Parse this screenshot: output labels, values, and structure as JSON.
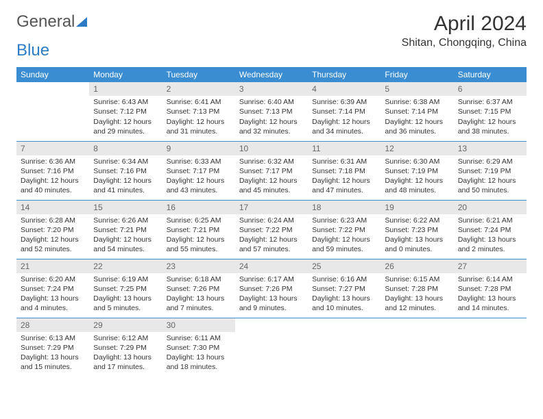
{
  "logo": {
    "text1": "General",
    "text2": "Blue"
  },
  "title": "April 2024",
  "location": "Shitan, Chongqing, China",
  "colors": {
    "header_bg": "#3a8dd0",
    "header_text": "#ffffff",
    "daynum_bg": "#e8e8e8",
    "daynum_text": "#666666",
    "cell_border": "#3a8dd0",
    "body_text": "#333333",
    "logo_gray": "#555555",
    "logo_blue": "#2b7cc4",
    "background": "#ffffff"
  },
  "typography": {
    "month_title_fontsize": 30,
    "location_fontsize": 16,
    "header_fontsize": 12,
    "daynum_fontsize": 12,
    "cell_fontsize": 10.5,
    "font_family": "Arial"
  },
  "layout": {
    "columns": 7,
    "rows": 5,
    "start_day_index": 1,
    "total_days": 30
  },
  "weekdays": [
    "Sunday",
    "Monday",
    "Tuesday",
    "Wednesday",
    "Thursday",
    "Friday",
    "Saturday"
  ],
  "days": [
    {
      "n": 1,
      "sunrise": "6:43 AM",
      "sunset": "7:12 PM",
      "daylight": "12 hours and 29 minutes."
    },
    {
      "n": 2,
      "sunrise": "6:41 AM",
      "sunset": "7:13 PM",
      "daylight": "12 hours and 31 minutes."
    },
    {
      "n": 3,
      "sunrise": "6:40 AM",
      "sunset": "7:13 PM",
      "daylight": "12 hours and 32 minutes."
    },
    {
      "n": 4,
      "sunrise": "6:39 AM",
      "sunset": "7:14 PM",
      "daylight": "12 hours and 34 minutes."
    },
    {
      "n": 5,
      "sunrise": "6:38 AM",
      "sunset": "7:14 PM",
      "daylight": "12 hours and 36 minutes."
    },
    {
      "n": 6,
      "sunrise": "6:37 AM",
      "sunset": "7:15 PM",
      "daylight": "12 hours and 38 minutes."
    },
    {
      "n": 7,
      "sunrise": "6:36 AM",
      "sunset": "7:16 PM",
      "daylight": "12 hours and 40 minutes."
    },
    {
      "n": 8,
      "sunrise": "6:34 AM",
      "sunset": "7:16 PM",
      "daylight": "12 hours and 41 minutes."
    },
    {
      "n": 9,
      "sunrise": "6:33 AM",
      "sunset": "7:17 PM",
      "daylight": "12 hours and 43 minutes."
    },
    {
      "n": 10,
      "sunrise": "6:32 AM",
      "sunset": "7:17 PM",
      "daylight": "12 hours and 45 minutes."
    },
    {
      "n": 11,
      "sunrise": "6:31 AM",
      "sunset": "7:18 PM",
      "daylight": "12 hours and 47 minutes."
    },
    {
      "n": 12,
      "sunrise": "6:30 AM",
      "sunset": "7:19 PM",
      "daylight": "12 hours and 48 minutes."
    },
    {
      "n": 13,
      "sunrise": "6:29 AM",
      "sunset": "7:19 PM",
      "daylight": "12 hours and 50 minutes."
    },
    {
      "n": 14,
      "sunrise": "6:28 AM",
      "sunset": "7:20 PM",
      "daylight": "12 hours and 52 minutes."
    },
    {
      "n": 15,
      "sunrise": "6:26 AM",
      "sunset": "7:21 PM",
      "daylight": "12 hours and 54 minutes."
    },
    {
      "n": 16,
      "sunrise": "6:25 AM",
      "sunset": "7:21 PM",
      "daylight": "12 hours and 55 minutes."
    },
    {
      "n": 17,
      "sunrise": "6:24 AM",
      "sunset": "7:22 PM",
      "daylight": "12 hours and 57 minutes."
    },
    {
      "n": 18,
      "sunrise": "6:23 AM",
      "sunset": "7:22 PM",
      "daylight": "12 hours and 59 minutes."
    },
    {
      "n": 19,
      "sunrise": "6:22 AM",
      "sunset": "7:23 PM",
      "daylight": "13 hours and 0 minutes."
    },
    {
      "n": 20,
      "sunrise": "6:21 AM",
      "sunset": "7:24 PM",
      "daylight": "13 hours and 2 minutes."
    },
    {
      "n": 21,
      "sunrise": "6:20 AM",
      "sunset": "7:24 PM",
      "daylight": "13 hours and 4 minutes."
    },
    {
      "n": 22,
      "sunrise": "6:19 AM",
      "sunset": "7:25 PM",
      "daylight": "13 hours and 5 minutes."
    },
    {
      "n": 23,
      "sunrise": "6:18 AM",
      "sunset": "7:26 PM",
      "daylight": "13 hours and 7 minutes."
    },
    {
      "n": 24,
      "sunrise": "6:17 AM",
      "sunset": "7:26 PM",
      "daylight": "13 hours and 9 minutes."
    },
    {
      "n": 25,
      "sunrise": "6:16 AM",
      "sunset": "7:27 PM",
      "daylight": "13 hours and 10 minutes."
    },
    {
      "n": 26,
      "sunrise": "6:15 AM",
      "sunset": "7:28 PM",
      "daylight": "13 hours and 12 minutes."
    },
    {
      "n": 27,
      "sunrise": "6:14 AM",
      "sunset": "7:28 PM",
      "daylight": "13 hours and 14 minutes."
    },
    {
      "n": 28,
      "sunrise": "6:13 AM",
      "sunset": "7:29 PM",
      "daylight": "13 hours and 15 minutes."
    },
    {
      "n": 29,
      "sunrise": "6:12 AM",
      "sunset": "7:29 PM",
      "daylight": "13 hours and 17 minutes."
    },
    {
      "n": 30,
      "sunrise": "6:11 AM",
      "sunset": "7:30 PM",
      "daylight": "13 hours and 18 minutes."
    }
  ],
  "labels": {
    "sunrise": "Sunrise:",
    "sunset": "Sunset:",
    "daylight": "Daylight:"
  }
}
